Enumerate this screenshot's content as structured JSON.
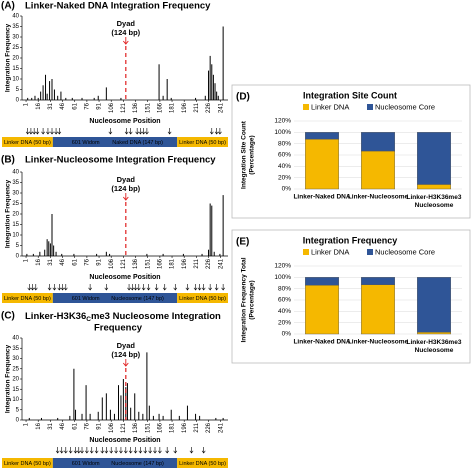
{
  "chart_data": [
    {
      "type": "spike",
      "panel_label": "(A)",
      "title": [
        "Linker-Naked DNA Integration Frequency"
      ],
      "ylabel": "Integration Frequency",
      "xlabel": "Nucleosome Position",
      "xlim": [
        -4,
        250
      ],
      "xticks": [
        1,
        16,
        31,
        46,
        61,
        76,
        91,
        106,
        121,
        136,
        151,
        166,
        181,
        196,
        211,
        226,
        241
      ],
      "ylim": [
        0,
        40
      ],
      "yticks": [
        0,
        5,
        10,
        15,
        20,
        25,
        30,
        35,
        40
      ],
      "dyad": 124,
      "dyad_label": [
        "Dyad",
        "(124 bp)"
      ],
      "color": "#000000",
      "x": [
        3,
        8,
        12,
        16,
        19,
        22,
        25,
        27,
        30,
        33,
        36,
        40,
        44,
        50,
        58,
        70,
        85,
        90,
        100,
        118,
        165,
        170,
        175,
        180,
        210,
        222,
        226,
        228,
        230,
        232,
        234,
        236,
        238,
        244
      ],
      "values": [
        1,
        1,
        2,
        1,
        4,
        7,
        12,
        3,
        9,
        10,
        5,
        2,
        4,
        1,
        1,
        1,
        1,
        2,
        6,
        1,
        17,
        2,
        10,
        1,
        1,
        2,
        14,
        21,
        17,
        12,
        8,
        4,
        2,
        35
      ],
      "integration_arrows": [
        3,
        7,
        11,
        15,
        22,
        28,
        33,
        38,
        42,
        105,
        125,
        130,
        138,
        142,
        146,
        150,
        178,
        230,
        236,
        240
      ],
      "segments": [
        "Linker DNA (50 bp)",
        "601 Widom",
        "Naked DNA (147 bp)",
        "Linker DNA (50 bp)"
      ]
    },
    {
      "type": "spike",
      "panel_label": "(B)",
      "title": [
        "Linker-Nucleosome Integration Frequency"
      ],
      "ylabel": "Integration Frequency",
      "xlabel": "Nucleosome Position",
      "xlim": [
        -4,
        250
      ],
      "xticks": [
        1,
        16,
        31,
        46,
        61,
        76,
        91,
        106,
        121,
        136,
        151,
        166,
        181,
        196,
        211,
        226,
        241
      ],
      "ylim": [
        0,
        40
      ],
      "yticks": [
        0,
        5,
        10,
        15,
        20,
        25,
        30,
        35,
        40
      ],
      "dyad": 124,
      "dyad_label": [
        "Dyad",
        "(124 bp)"
      ],
      "color": "#000000",
      "x": [
        2,
        10,
        18,
        24,
        27,
        29,
        31,
        33,
        35,
        38,
        45,
        60,
        88,
        100,
        104,
        150,
        170,
        195,
        218,
        226,
        228,
        230,
        233,
        240,
        244
      ],
      "values": [
        1,
        1,
        2,
        3,
        8,
        7,
        6,
        20,
        5,
        2,
        1,
        1,
        1,
        2,
        1,
        1,
        1,
        1,
        1,
        3,
        25,
        24,
        2,
        1,
        29
      ],
      "integration_arrows": [
        5,
        9,
        13,
        30,
        36,
        42,
        46,
        50,
        80,
        100,
        128,
        132,
        136,
        140,
        146,
        152,
        162,
        172,
        185,
        200,
        210,
        215,
        220,
        228,
        236,
        244
      ],
      "segments": [
        "Linker DNA (50 bp)",
        "601 Widom",
        "Nucleosome (147 bp)",
        "Linker DNA (50 bp)"
      ]
    },
    {
      "type": "spike",
      "panel_label": "(C)",
      "title": [
        "Linker-H3K36",
        "C",
        "me3 Nucleosome Integration",
        "Frequency"
      ],
      "ylabel": "Integration Frequency",
      "xlabel": "Nucleosome Position",
      "xlim": [
        -4,
        250
      ],
      "xticks": [
        1,
        16,
        31,
        46,
        61,
        76,
        91,
        106,
        121,
        136,
        151,
        166,
        181,
        196,
        211,
        226,
        241
      ],
      "ylim": [
        0,
        40
      ],
      "yticks": [
        0,
        5,
        10,
        15,
        20,
        25,
        30,
        35,
        40
      ],
      "dyad": 124,
      "dyad_label": [
        "Dyad",
        "(124 bp)"
      ],
      "color": "#000000",
      "x": [
        5,
        20,
        40,
        55,
        60,
        62,
        70,
        75,
        80,
        90,
        95,
        100,
        105,
        110,
        115,
        118,
        121,
        124,
        126,
        130,
        135,
        140,
        145,
        150,
        153,
        158,
        165,
        170,
        180,
        190,
        200,
        210,
        215,
        235,
        244
      ],
      "values": [
        1,
        1,
        1,
        2,
        25,
        5,
        3,
        17,
        3,
        4,
        11,
        13,
        5,
        3,
        17,
        12,
        20,
        16,
        18,
        6,
        13,
        4,
        3,
        33,
        7,
        2,
        3,
        2,
        5,
        2,
        7,
        3,
        2,
        1,
        1
      ],
      "integration_arrows": [
        40,
        45,
        50,
        56,
        62,
        66,
        70,
        76,
        82,
        88,
        95,
        100,
        106,
        112,
        118,
        124,
        130,
        136,
        142,
        148,
        154,
        160,
        166,
        175,
        185,
        205,
        220
      ],
      "segments": [
        "Linker DNA (50 bp)",
        "601 Widom",
        "Nucleosome (147 bp)",
        "Linker DNA (50 bp)"
      ]
    },
    {
      "type": "stacked_bar",
      "panel_label": "(D)",
      "title": "Integration Site Count",
      "ylabel": [
        "Integration Site Count",
        "(Percentage)"
      ],
      "categories": [
        "Linker-Naked DNA",
        "Linker-Nucleosome",
        "Linker-H3K36me3 Nucleosome"
      ],
      "ylim": [
        0,
        120
      ],
      "yticks": [
        {
          "value": 0,
          "label": "0%"
        },
        {
          "value": 20,
          "label": "20%"
        },
        {
          "value": 40,
          "label": "40%"
        },
        {
          "value": 60,
          "label": "60%"
        },
        {
          "value": 80,
          "label": "80%"
        },
        {
          "value": 100,
          "label": "100%"
        },
        {
          "value": 120,
          "label": "120%"
        }
      ],
      "series": [
        {
          "name": "Linker DNA",
          "color": "#f5b800",
          "values": [
            88,
            67,
            8
          ]
        },
        {
          "name": "Nucleosome Core",
          "color": "#2f5597",
          "values": [
            12,
            33,
            92
          ]
        }
      ]
    },
    {
      "type": "stacked_bar",
      "panel_label": "(E)",
      "title": "Integration Frequency",
      "ylabel": [
        "Integration Frequency Total",
        "(Percentage)"
      ],
      "categories": [
        "Linker-Naked DNA",
        "Linker-Nucleosome",
        "Linker-H3K36me3 Nucleosome"
      ],
      "ylim": [
        0,
        120
      ],
      "yticks": [
        {
          "value": 0,
          "label": "0%"
        },
        {
          "value": 20,
          "label": "20%"
        },
        {
          "value": 40,
          "label": "40%"
        },
        {
          "value": 60,
          "label": "60%"
        },
        {
          "value": 80,
          "label": "80%"
        },
        {
          "value": 100,
          "label": "100%"
        },
        {
          "value": 120,
          "label": "120%"
        }
      ],
      "series": [
        {
          "name": "Linker DNA",
          "color": "#f5b800",
          "values": [
            86,
            87,
            3
          ]
        },
        {
          "name": "Nucleosome Core",
          "color": "#2f5597",
          "values": [
            14,
            13,
            97
          ]
        }
      ]
    }
  ]
}
